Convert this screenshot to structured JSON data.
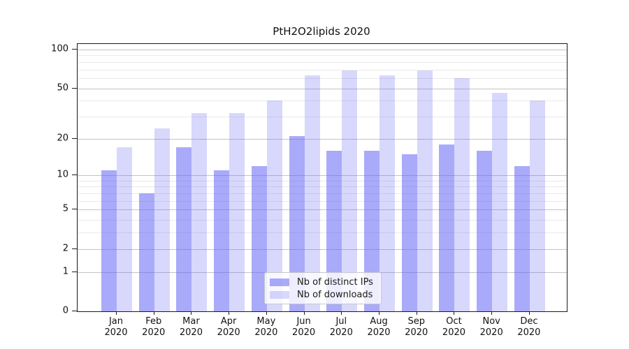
{
  "title": "PtH2O2lipids 2020",
  "colors": {
    "ips_bar": "rgba(100,100,245,0.55)",
    "downloads_bar": "rgba(100,100,245,0.25)",
    "major_grid": "#c3c3c3",
    "minor_grid": "#e9e9e9",
    "axis": "#1a1a1a"
  },
  "legend": {
    "items": [
      {
        "label": "Nb of distinct IPs",
        "series": "ips"
      },
      {
        "label": "Nb of downloads",
        "series": "downloads"
      }
    ]
  },
  "chart_data": {
    "type": "bar",
    "title": "PtH2O2lipids 2020",
    "scale": "symlog(log10(1+v))",
    "categories": [
      "Jan 2020",
      "Feb 2020",
      "Mar 2020",
      "Apr 2020",
      "May 2020",
      "Jun 2020",
      "Jul 2020",
      "Aug 2020",
      "Sep 2020",
      "Oct 2020",
      "Nov 2020",
      "Dec 2020"
    ],
    "series": [
      {
        "name": "Nb of distinct IPs",
        "key": "ips",
        "values": [
          11,
          7,
          17,
          11,
          12,
          21,
          16,
          16,
          15,
          18,
          16,
          12
        ]
      },
      {
        "name": "Nb of downloads",
        "key": "downloads",
        "values": [
          17,
          24,
          32,
          32,
          40,
          63,
          69,
          63,
          69,
          60,
          46,
          40
        ]
      }
    ],
    "y_ticks": [
      100,
      50,
      20,
      10,
      5,
      2,
      1,
      0
    ],
    "y_minor_gridlines": [
      90,
      80,
      70,
      60,
      40,
      30,
      9,
      8,
      7,
      6,
      4,
      3
    ],
    "ylim": [
      0,
      110
    ],
    "xlabel": "",
    "ylabel": "",
    "grid": "horizontal",
    "legend_position": "bottom-center-inside"
  }
}
